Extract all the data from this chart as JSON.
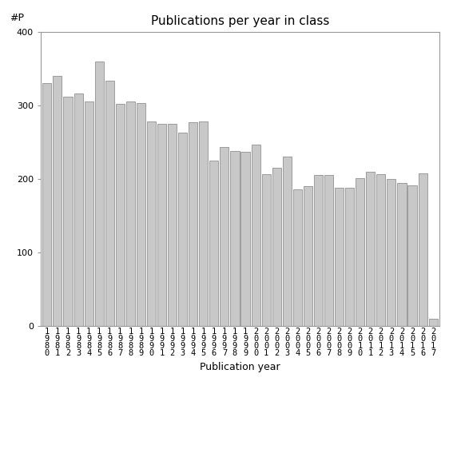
{
  "title": "Publications per year in class",
  "xlabel": "Publication year",
  "ylabel": "#P",
  "years": [
    "1980",
    "1981",
    "1982",
    "1983",
    "1984",
    "1985",
    "1986",
    "1987",
    "1988",
    "1989",
    "1990",
    "1991",
    "1992",
    "1993",
    "1994",
    "1995",
    "1996",
    "1997",
    "1998",
    "1999",
    "2000",
    "2001",
    "2002",
    "2003",
    "2004",
    "2005",
    "2006",
    "2007",
    "2008",
    "2009",
    "2010",
    "2011",
    "2012",
    "2013",
    "2014",
    "2015",
    "2016",
    "2017"
  ],
  "values": [
    330,
    340,
    312,
    316,
    305,
    360,
    333,
    302,
    305,
    303,
    278,
    275,
    275,
    263,
    277,
    278,
    225,
    243,
    238,
    237,
    247,
    207,
    215,
    230,
    186,
    190,
    205,
    205,
    188,
    188,
    201,
    210,
    207,
    200,
    195,
    191,
    208,
    10
  ],
  "bar_color": "#c8c8c8",
  "bar_edge_color": "#808080",
  "ylim": [
    0,
    400
  ],
  "yticks": [
    0,
    100,
    200,
    300,
    400
  ],
  "bg_color": "#ffffff",
  "title_fontsize": 11,
  "label_fontsize": 9,
  "tick_fontsize": 7.5
}
